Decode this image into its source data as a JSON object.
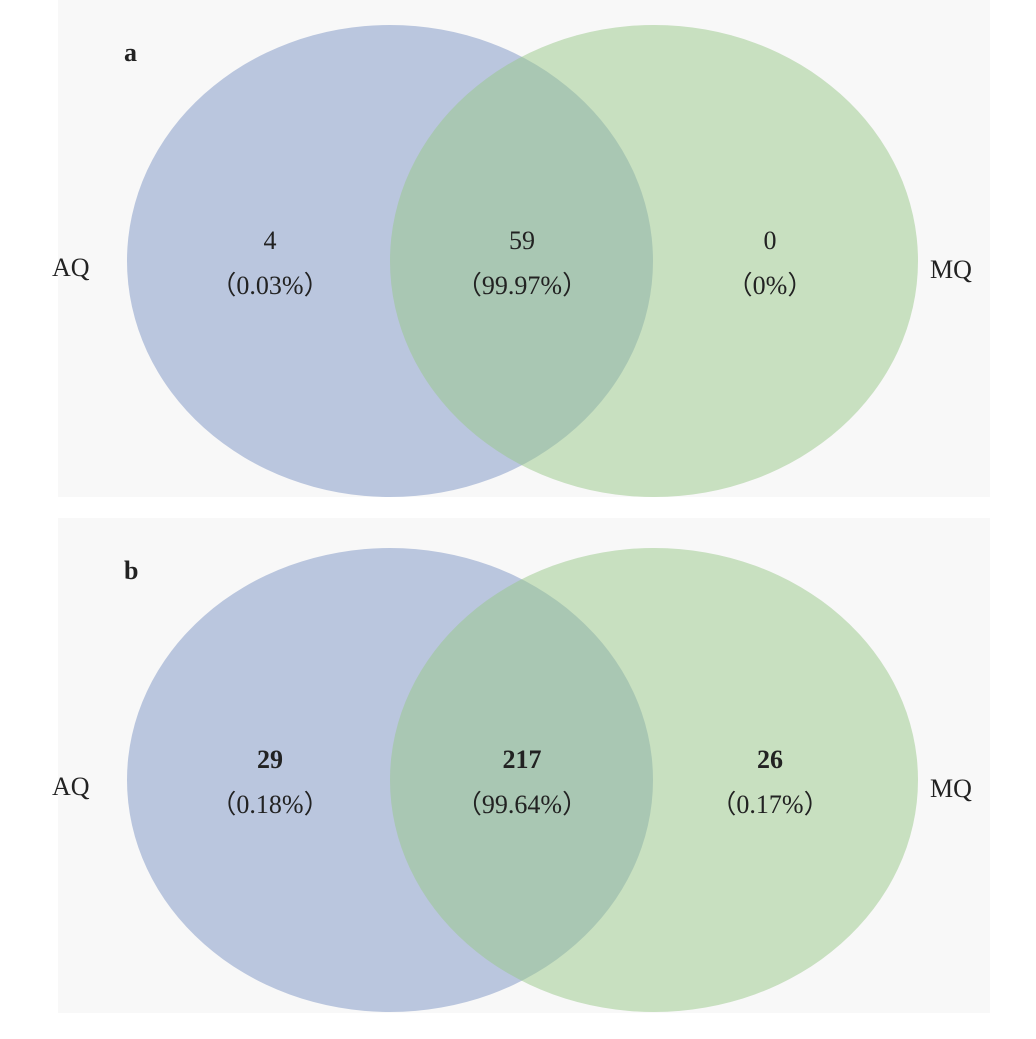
{
  "chart_data": [
    {
      "type": "venn",
      "panel": "a",
      "sets": [
        {
          "name": "AQ",
          "color": "#bac6de"
        },
        {
          "name": "MQ",
          "color": "#98c888"
        }
      ],
      "values": [
        4,
        59,
        0
      ],
      "shares": [
        0.03,
        99.97,
        0
      ],
      "share_labels": [
        "（0.03%）",
        "（99.97%）",
        "（0%）"
      ]
    },
    {
      "type": "venn",
      "panel": "b",
      "sets": [
        {
          "name": "AQ",
          "color": "#bac6de"
        },
        {
          "name": "MQ",
          "color": "#98c888"
        }
      ],
      "values": [
        29,
        217,
        26
      ],
      "shares": [
        0.18,
        99.64,
        0.17
      ],
      "share_labels": [
        "（0.18%）",
        "（99.64%）",
        "（0.17%）"
      ]
    }
  ]
}
